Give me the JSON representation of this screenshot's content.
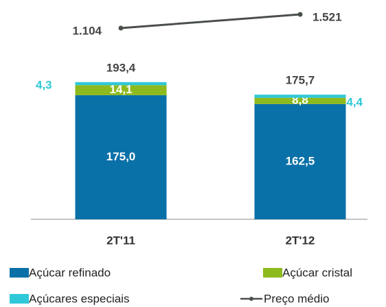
{
  "chart_data": {
    "type": "bar",
    "stacked": true,
    "categories": [
      "2T'11",
      "2T'12"
    ],
    "series": [
      {
        "name": "Açúcar refinado",
        "color": "#0a70a8",
        "values": [
          175.0,
          162.5
        ],
        "value_labels": [
          "175,0",
          "162,5"
        ]
      },
      {
        "name": "Açúcar cristal",
        "color": "#8dba1c",
        "values": [
          14.1,
          8.8
        ],
        "value_labels": [
          "14,1",
          "8,8"
        ]
      },
      {
        "name": "Açúcares especiais",
        "color": "#2fc8d8",
        "values": [
          4.3,
          4.4
        ],
        "value_labels": [
          "4,3",
          "4,4"
        ]
      },
      {
        "name": "Preço médio",
        "color": "#4a4f4a",
        "type": "line",
        "axis": "y2",
        "values": [
          1104,
          1521
        ],
        "value_labels": [
          "1.104",
          "1.521"
        ]
      }
    ],
    "totals": [
      193.4,
      175.7
    ],
    "total_labels": [
      "193,4",
      "175,7"
    ],
    "ylim": [
      0,
      200
    ],
    "y2lim": [
      0,
      2000
    ]
  }
}
